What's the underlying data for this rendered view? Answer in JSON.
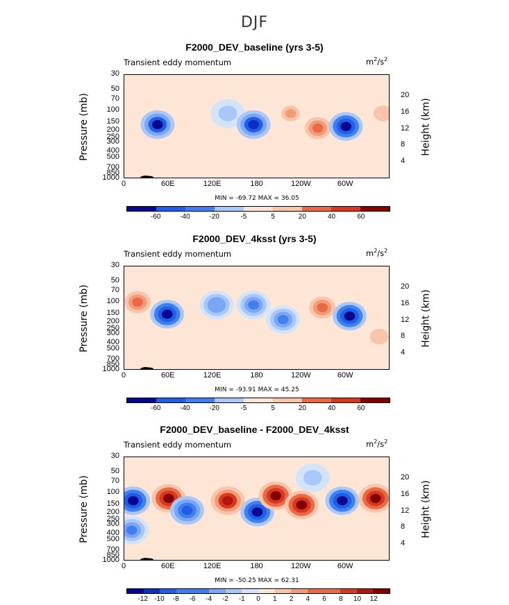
{
  "figure_title": "DJF",
  "colors": {
    "scale": [
      "#08088c",
      "#0a2fc4",
      "#1f5ee8",
      "#3f7fef",
      "#7aa6f5",
      "#a9c7f8",
      "#d3e4fa",
      "#fde6d6",
      "#f8c5aa",
      "#f29c77",
      "#e96a45",
      "#d8381f",
      "#b5150f",
      "#820000"
    ]
  },
  "panels": [
    {
      "title": "F2000_DEV_baseline (yrs 3-5)",
      "left_label": "Transient eddy momentum",
      "right_label_base": "m",
      "right_label_exp": "2",
      "right_label_mid": "/s",
      "right_label_exp2": "2",
      "ylabel": "Pressure (mb)",
      "y2label": "Height (km)",
      "minmax": "MIN = -69.72   MAX =   36.05",
      "cbar_labels": [
        "-60",
        "-40",
        "-20",
        "-5",
        "5",
        "20",
        "40",
        "60"
      ]
    },
    {
      "title": "F2000_DEV_4ksst (yrs 3-5)",
      "left_label": "Transient eddy momentum",
      "right_label_base": "m",
      "right_label_exp": "2",
      "right_label_mid": "/s",
      "right_label_exp2": "2",
      "ylabel": "Pressure (mb)",
      "y2label": "Height (km)",
      "minmax": "MIN = -93.91   MAX =   45.25",
      "cbar_labels": [
        "-60",
        "-40",
        "-20",
        "-5",
        "5",
        "20",
        "40",
        "60"
      ]
    },
    {
      "title": "F2000_DEV_baseline - F2000_DEV_4ksst",
      "left_label": "Transient eddy momentum",
      "right_label_base": "m",
      "right_label_exp": "2",
      "right_label_mid": "/s",
      "right_label_exp2": "2",
      "ylabel": "Pressure (mb)",
      "y2label": "Height (km)",
      "minmax": "MIN = -50.25   MAX =   62.31",
      "cbar_labels": [
        "-12",
        "-10",
        "-8",
        "-6",
        "-4",
        "-2",
        "-1",
        "0",
        "1",
        "2",
        "4",
        "6",
        "8",
        "10",
        "12"
      ]
    }
  ],
  "axes": {
    "pressure_ticks": [
      "30",
      "50",
      "70",
      "100",
      "150",
      "200",
      "250",
      "300",
      "400",
      "500",
      "700",
      "850",
      "1000"
    ],
    "height_ticks": [
      "20",
      "16",
      "12",
      "8",
      "4"
    ],
    "lon_ticks": [
      "0",
      "60E",
      "120E",
      "180",
      "120W",
      "60W"
    ]
  },
  "chart_data": [
    {
      "type": "heatmap",
      "title": "F2000_DEV_baseline (yrs 3-5)",
      "xlabel": "",
      "ylabel": "Pressure (mb)",
      "x_ticks": [
        "0",
        "60E",
        "120E",
        "180",
        "120W",
        "60W"
      ],
      "y_ticks": [
        "30",
        "50",
        "70",
        "100",
        "150",
        "200",
        "250",
        "300",
        "400",
        "500",
        "700",
        "850",
        "1000"
      ],
      "min": -69.72,
      "max": 36.05,
      "blobs": [
        {
          "lon": 45,
          "p": 160,
          "value": -60
        },
        {
          "lon": 140,
          "p": 110,
          "value": -20
        },
        {
          "lon": 175,
          "p": 160,
          "value": -55
        },
        {
          "lon": 225,
          "p": 110,
          "value": 20
        },
        {
          "lon": 262,
          "p": 180,
          "value": 30
        },
        {
          "lon": 300,
          "p": 170,
          "value": -65
        },
        {
          "lon": 350,
          "p": 110,
          "value": 15
        }
      ]
    },
    {
      "type": "heatmap",
      "title": "F2000_DEV_4ksst (yrs 3-5)",
      "xlabel": "",
      "ylabel": "Pressure (mb)",
      "x_ticks": [
        "0",
        "60E",
        "120E",
        "180",
        "120W",
        "60W"
      ],
      "y_ticks": [
        "30",
        "50",
        "70",
        "100",
        "150",
        "200",
        "250",
        "300",
        "400",
        "500",
        "700",
        "850",
        "1000"
      ],
      "min": -93.91,
      "max": 45.25,
      "blobs": [
        {
          "lon": 18,
          "p": 100,
          "value": 35
        },
        {
          "lon": 58,
          "p": 150,
          "value": -70
        },
        {
          "lon": 125,
          "p": 110,
          "value": -30
        },
        {
          "lon": 175,
          "p": 110,
          "value": -35
        },
        {
          "lon": 215,
          "p": 180,
          "value": -40
        },
        {
          "lon": 268,
          "p": 120,
          "value": 40
        },
        {
          "lon": 305,
          "p": 160,
          "value": -65
        },
        {
          "lon": 345,
          "p": 320,
          "value": 20
        }
      ]
    },
    {
      "type": "heatmap",
      "title": "F2000_DEV_baseline - F2000_DEV_4ksst",
      "xlabel": "",
      "ylabel": "Pressure (mb)",
      "x_ticks": [
        "0",
        "60E",
        "120E",
        "180",
        "120W",
        "60W"
      ],
      "y_ticks": [
        "30",
        "50",
        "70",
        "100",
        "150",
        "200",
        "250",
        "300",
        "400",
        "500",
        "700",
        "850",
        "1000"
      ],
      "min": -50.25,
      "max": 62.31,
      "blobs": [
        {
          "lon": 12,
          "p": 130,
          "value": -14
        },
        {
          "lon": 60,
          "p": 120,
          "value": 14
        },
        {
          "lon": 85,
          "p": 180,
          "value": -10
        },
        {
          "lon": 140,
          "p": 130,
          "value": 12
        },
        {
          "lon": 180,
          "p": 190,
          "value": -14
        },
        {
          "lon": 205,
          "p": 110,
          "value": 14
        },
        {
          "lon": 240,
          "p": 150,
          "value": 14
        },
        {
          "lon": 295,
          "p": 130,
          "value": -14
        },
        {
          "lon": 340,
          "p": 120,
          "value": 14
        },
        {
          "lon": 255,
          "p": 60,
          "value": -4
        },
        {
          "lon": 10,
          "p": 350,
          "value": -8
        }
      ]
    }
  ]
}
